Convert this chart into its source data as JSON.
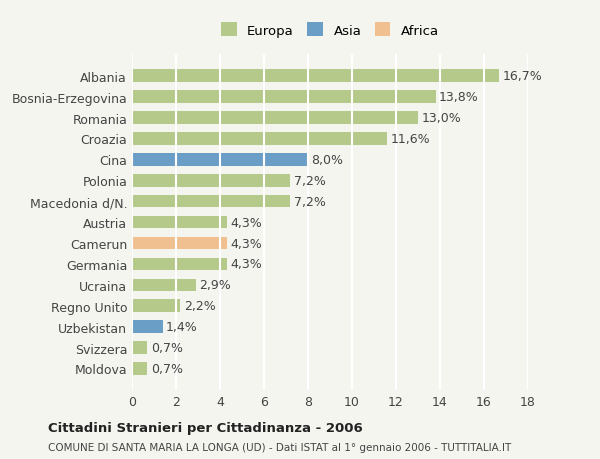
{
  "categories": [
    "Albania",
    "Bosnia-Erzegovina",
    "Romania",
    "Croazia",
    "Cina",
    "Polonia",
    "Macedonia d/N.",
    "Austria",
    "Camerun",
    "Germania",
    "Ucraina",
    "Regno Unito",
    "Uzbekistan",
    "Svizzera",
    "Moldova"
  ],
  "values": [
    16.7,
    13.8,
    13.0,
    11.6,
    8.0,
    7.2,
    7.2,
    4.3,
    4.3,
    4.3,
    2.9,
    2.2,
    1.4,
    0.7,
    0.7
  ],
  "labels": [
    "16,7%",
    "13,8%",
    "13,0%",
    "11,6%",
    "8,0%",
    "7,2%",
    "7,2%",
    "4,3%",
    "4,3%",
    "4,3%",
    "2,9%",
    "2,2%",
    "1,4%",
    "0,7%",
    "0,7%"
  ],
  "colors": [
    "#b5c98a",
    "#b5c98a",
    "#b5c98a",
    "#b5c98a",
    "#6b9ec7",
    "#b5c98a",
    "#b5c98a",
    "#b5c98a",
    "#f0c090",
    "#b5c98a",
    "#b5c98a",
    "#b5c98a",
    "#6b9ec7",
    "#b5c98a",
    "#b5c98a"
  ],
  "legend": [
    {
      "label": "Europa",
      "color": "#b5c98a"
    },
    {
      "label": "Asia",
      "color": "#6b9ec7"
    },
    {
      "label": "Africa",
      "color": "#f0c090"
    }
  ],
  "xlim": [
    0,
    18
  ],
  "xticks": [
    0,
    2,
    4,
    6,
    8,
    10,
    12,
    14,
    16,
    18
  ],
  "title": "Cittadini Stranieri per Cittadinanza - 2006",
  "subtitle": "COMUNE DI SANTA MARIA LA LONGA (UD) - Dati ISTAT al 1° gennaio 2006 - TUTTITALIA.IT",
  "background_color": "#f5f5f0",
  "bar_height": 0.6,
  "grid_color": "#ffffff",
  "label_fontsize": 9,
  "tick_fontsize": 9
}
